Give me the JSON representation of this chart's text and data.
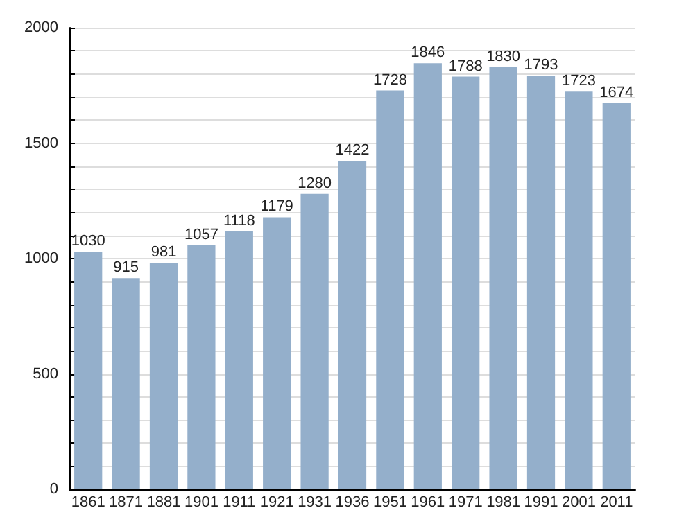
{
  "chart_data": {
    "type": "bar",
    "categories": [
      "1861",
      "1871",
      "1881",
      "1901",
      "1911",
      "1921",
      "1931",
      "1936",
      "1951",
      "1961",
      "1971",
      "1981",
      "1991",
      "2001",
      "2011"
    ],
    "values": [
      1030,
      915,
      981,
      1057,
      1118,
      1179,
      1280,
      1422,
      1728,
      1846,
      1788,
      1830,
      1793,
      1723,
      1674
    ],
    "color": "#94afcb",
    "ylim": [
      0,
      2000
    ],
    "yticks": [
      0,
      {
        "value": 100,
        "label": null
      },
      {
        "value": 200,
        "label": null
      },
      {
        "value": 300,
        "label": null
      },
      {
        "value": 400,
        "label": null
      },
      500,
      {
        "value": 600,
        "label": null
      },
      {
        "value": 700,
        "label": null
      },
      {
        "value": 800,
        "label": null
      },
      {
        "value": 900,
        "label": null
      },
      1000,
      {
        "value": 1100,
        "label": null
      },
      {
        "value": 1200,
        "label": null
      },
      {
        "value": 1300,
        "label": null
      },
      {
        "value": 1400,
        "label": null
      },
      1500,
      {
        "value": 1600,
        "label": null
      },
      {
        "value": 1700,
        "label": null
      },
      {
        "value": 1800,
        "label": null
      },
      {
        "value": 1900,
        "label": null
      },
      2000
    ],
    "grid": true,
    "data_labels": true
  }
}
